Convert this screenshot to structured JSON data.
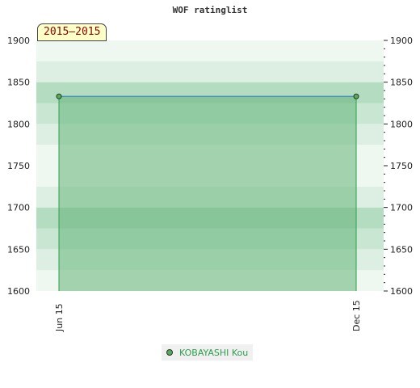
{
  "title": "WOF ratinglist",
  "period_label": "2015–2015",
  "colors": {
    "band_a": "#b4dcc0",
    "band_b": "#c8e6d2",
    "band_c": "#dcefe2",
    "band_d": "#eef7f0",
    "fill": "#64b478",
    "line": "#3d8ac2",
    "marker_fill": "#5aa862",
    "marker_stroke": "#1e3d1e",
    "legend_text": "#2e9e4f"
  },
  "chart_data": {
    "type": "area",
    "title": "WOF ratinglist",
    "x": [
      "Jun 15",
      "Dec 15"
    ],
    "series": [
      {
        "name": "KOBAYASHI Kou",
        "values": [
          1833,
          1833
        ]
      }
    ],
    "ylim": [
      1600,
      1900
    ],
    "yticks": [
      1600,
      1650,
      1700,
      1750,
      1800,
      1850,
      1900
    ],
    "y_axes": "left-and-right",
    "grid": true,
    "legend_position": "bottom"
  }
}
